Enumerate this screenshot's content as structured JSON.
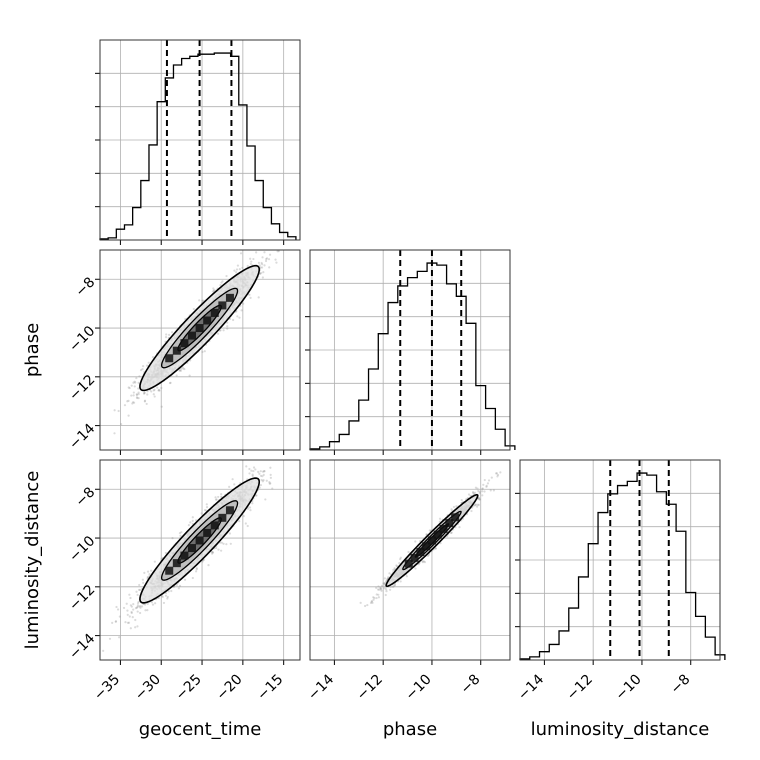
{
  "chart_data": {
    "type": "corner",
    "parameters": [
      "geocent_time",
      "phase",
      "luminosity_distance"
    ],
    "axis_labels": {
      "x": [
        "geocent_time",
        "phase",
        "luminosity_distance"
      ],
      "y": [
        "phase",
        "luminosity_distance"
      ]
    },
    "ranges": {
      "geocent_time": [
        -37.5,
        -13
      ],
      "phase": [
        -15,
        -6.8
      ],
      "luminosity_distance": [
        -15,
        -6.8
      ]
    },
    "ticks": {
      "geocent_time": [
        -35,
        -30,
        -25,
        -20,
        -15
      ],
      "phase": [
        -14,
        -12,
        -10,
        -8
      ],
      "luminosity_distance": [
        -14,
        -12,
        -10,
        -8
      ]
    },
    "quantiles": {
      "geocent_time": [
        -29.3,
        -25.3,
        -21.4
      ],
      "phase": [
        -11.3,
        -10.0,
        -8.8
      ],
      "luminosity_distance": [
        -11.3,
        -10.1,
        -8.9
      ]
    },
    "histograms": {
      "geocent_time": {
        "edges": [
          -37.5,
          -36.5,
          -35.5,
          -34.5,
          -33.5,
          -32.5,
          -31.5,
          -30.5,
          -29.5,
          -28.5,
          -27.5,
          -26.5,
          -25.5,
          -24.5,
          -23.5,
          -22.5,
          -21.5,
          -20.5,
          -19.5,
          -18.5,
          -17.5,
          -16.5,
          -15.5,
          -14.5,
          -13.5
        ],
        "counts": [
          1,
          2,
          10,
          14,
          30,
          55,
          88,
          128,
          150,
          162,
          168,
          170,
          172,
          172,
          173,
          173,
          170,
          125,
          87,
          55,
          30,
          15,
          7,
          3
        ]
      },
      "phase": {
        "edges": [
          -15.0,
          -14.6,
          -14.2,
          -13.8,
          -13.4,
          -13.0,
          -12.6,
          -12.2,
          -11.8,
          -11.4,
          -11.0,
          -10.6,
          -10.2,
          -9.8,
          -9.4,
          -9.0,
          -8.6,
          -8.2,
          -7.8,
          -7.4,
          -7.0,
          -6.6
        ],
        "counts": [
          1,
          3,
          8,
          15,
          28,
          48,
          78,
          112,
          142,
          158,
          166,
          172,
          180,
          178,
          160,
          148,
          122,
          62,
          40,
          20,
          4
        ]
      },
      "luminosity_distance": {
        "edges": [
          -15.0,
          -14.6,
          -14.2,
          -13.8,
          -13.4,
          -13.0,
          -12.6,
          -12.2,
          -11.8,
          -11.4,
          -11.0,
          -10.6,
          -10.2,
          -9.8,
          -9.4,
          -9.0,
          -8.6,
          -8.2,
          -7.8,
          -7.4,
          -7.0,
          -6.6
        ],
        "counts": [
          1,
          3,
          8,
          15,
          28,
          50,
          80,
          112,
          142,
          160,
          168,
          172,
          180,
          178,
          162,
          150,
          124,
          65,
          42,
          22,
          5
        ]
      }
    },
    "correlations": {
      "phase_vs_geocent_time": {
        "mean": [
          -25.3,
          -10.0
        ],
        "slope": 0.333,
        "sd_along": 3.5,
        "sd_across": 0.38
      },
      "luminosity_distance_vs_geocent_time": {
        "mean": [
          -25.3,
          -10.1
        ],
        "slope": 0.333,
        "sd_along": 3.5,
        "sd_across": 0.38
      },
      "luminosity_distance_vs_phase": {
        "mean": [
          -10.0,
          -10.1
        ],
        "slope": 1.0,
        "sd_along": 1.2,
        "sd_across": 0.12
      }
    },
    "grid": true,
    "colors": {
      "samples": "#999999",
      "contours": "#000000",
      "hist": "#000000",
      "grid": "#b0b0b0"
    }
  }
}
